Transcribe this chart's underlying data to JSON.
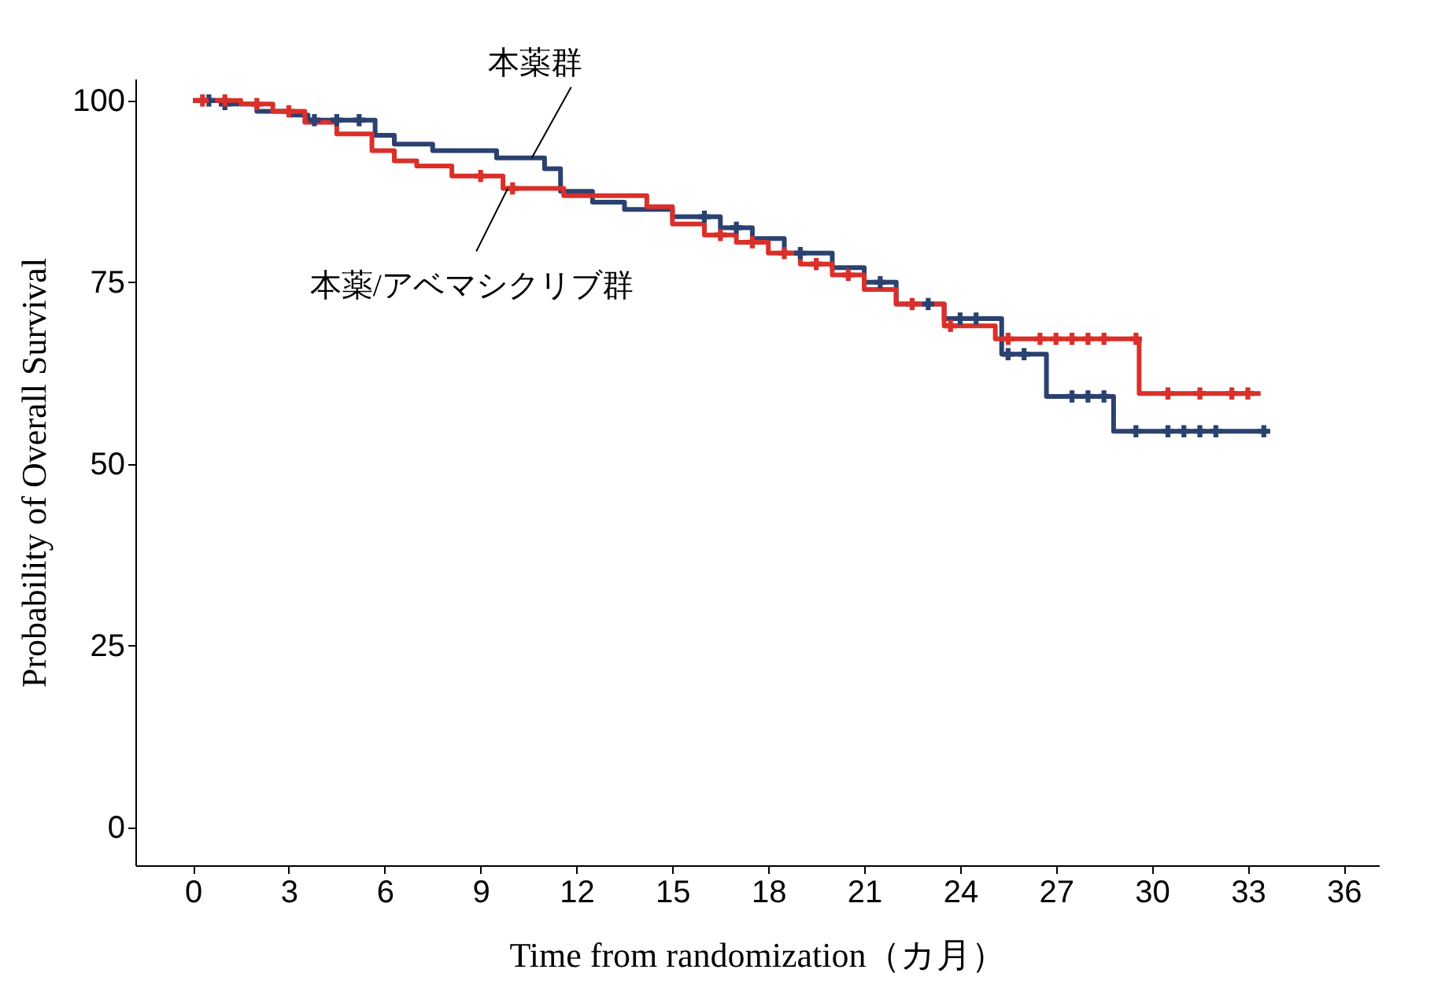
{
  "chart_data": {
    "type": "step",
    "xlabel": "Time from randomization（カ月）",
    "ylabel": "Probability of Overall Survival",
    "xlim": [
      -1.8,
      37.1
    ],
    "xticks": [
      0,
      3,
      6,
      9,
      12,
      15,
      18,
      21,
      24,
      27,
      30,
      33,
      36
    ],
    "ylim": [
      -5.2,
      103
    ],
    "yticks": [
      0,
      25,
      50,
      75,
      100
    ],
    "grid": false,
    "line_style": "solid",
    "annotations": [
      {
        "text": "本薬群",
        "x": 10.6,
        "y": 92.1
      },
      {
        "text": "本薬/アベマシクリブ群",
        "x": 9.85,
        "y": 87.9
      }
    ],
    "series": [
      {
        "color": "#2b4170",
        "x": [
          0,
          1,
          2,
          3,
          3.6,
          5.7,
          6.3,
          7.5,
          9.5,
          11,
          11.5,
          12.5,
          13.5,
          15,
          16.5,
          17.5,
          18.5,
          20,
          21,
          22,
          23.5,
          25.3,
          26.7,
          28.8,
          33.7
        ],
        "values": [
          100,
          99.5,
          98.5,
          98,
          97.3,
          95.2,
          94,
          93.1,
          92.1,
          90.6,
          87.5,
          86,
          85,
          84,
          82.5,
          81,
          79,
          77,
          75,
          72,
          70,
          65.1,
          59.3,
          54.5,
          54.5
        ]
      },
      {
        "color": "#d9302a",
        "x": [
          0,
          1.5,
          2.5,
          3.5,
          4.5,
          5.6,
          6.3,
          7,
          8.1,
          9.7,
          11.6,
          14.2,
          15,
          16,
          17,
          18,
          19,
          20,
          21,
          22,
          23.5,
          25.1,
          29.6,
          33.4
        ],
        "values": [
          100,
          99.5,
          98.5,
          97,
          95.4,
          93.1,
          91.7,
          91,
          89.6,
          87.9,
          86.9,
          85.4,
          83,
          81.5,
          80.5,
          79,
          77.5,
          76,
          74,
          72,
          69,
          67.2,
          59.7,
          59.7
        ]
      },
      {
        "type": "scatter",
        "marker": "cross",
        "color": "#2b4170",
        "x": [
          0.5,
          1,
          3.8,
          4.5,
          5.2,
          16,
          17,
          19,
          21.5,
          23,
          24,
          24.5,
          25.5,
          26,
          27.5,
          28,
          28.5,
          29.5,
          30.5,
          31,
          31.5,
          32,
          33.5
        ],
        "values": [
          100,
          99.5,
          97.3,
          97.3,
          97.3,
          84,
          82.5,
          79,
          75,
          72,
          70,
          70,
          65.1,
          65.1,
          59.3,
          59.3,
          59.3,
          54.5,
          54.5,
          54.5,
          54.5,
          54.5,
          54.5
        ]
      },
      {
        "type": "scatter",
        "marker": "cross",
        "color": "#d9302a",
        "x": [
          0.3,
          1,
          2,
          3,
          9,
          10,
          16.5,
          17.5,
          18.5,
          19.5,
          20.5,
          22.5,
          23.7,
          25.5,
          26.5,
          27,
          27.5,
          28,
          28.5,
          29.5,
          30.5,
          31.5,
          32.5,
          33
        ],
        "values": [
          100,
          100,
          99.5,
          98.5,
          89.6,
          87.9,
          81.5,
          80.5,
          79,
          77.5,
          76,
          72,
          69,
          67.2,
          67.2,
          67.2,
          67.2,
          67.2,
          67.2,
          67.2,
          59.7,
          59.7,
          59.7,
          59.7
        ]
      }
    ]
  }
}
